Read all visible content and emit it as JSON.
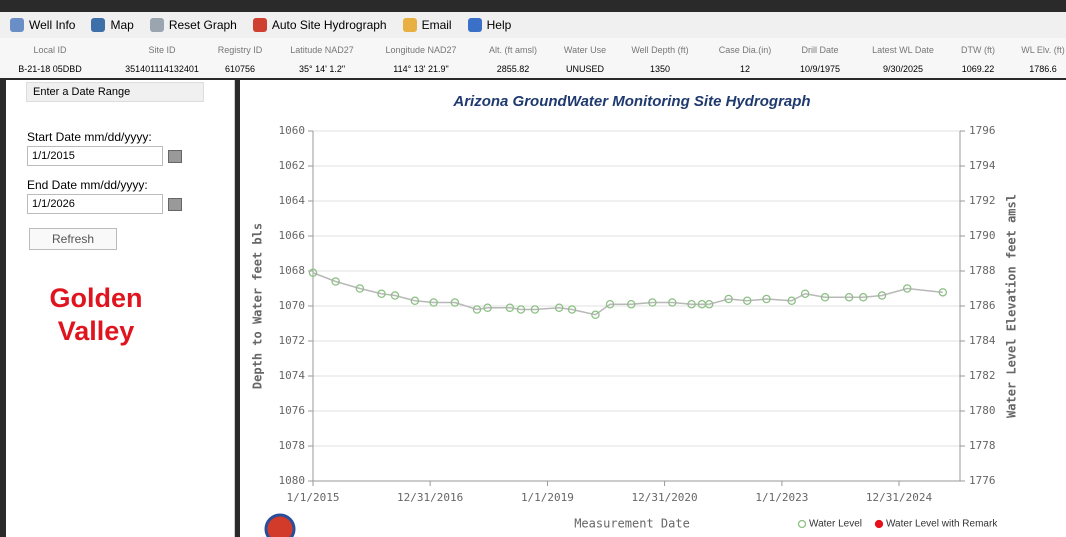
{
  "toolbar": [
    "Well Info",
    "Map",
    "Reset Graph",
    "Auto Site Hydrograph",
    "Email",
    "Help"
  ],
  "info": {
    "headers": [
      "Local ID",
      "Site ID",
      "Registry ID",
      "Latitude NAD27",
      "Longitude NAD27",
      "Alt. (ft amsl)",
      "Water Use",
      "Well Depth (ft)",
      "Case Dia.(in)",
      "Drill Date",
      "Latest WL Date",
      "DTW (ft)",
      "WL Elv. (ft)"
    ],
    "values": [
      "B-21-18 05DBD",
      "351401114132401",
      "610756",
      "35° 14' 1.2\"",
      "114° 13' 21.9\"",
      "2855.82",
      "UNUSED",
      "1350",
      "12",
      "10/9/1975",
      "9/30/2025",
      "1069.22",
      "1786.6"
    ]
  },
  "panel": {
    "header": "Enter a Date Range",
    "start_label": "Start Date mm/dd/yyyy:",
    "start_value": "1/1/2015",
    "end_label": "End Date mm/dd/yyyy:",
    "end_value": "1/1/2026",
    "button": "Refresh",
    "location": "Golden Valley"
  },
  "chart_data": {
    "type": "line",
    "title": "Arizona GroundWater Monitoring Site Hydrograph",
    "x_label": "Measurement Date",
    "y_label": "Depth to Water feet bls",
    "y2_label": "Water Level Elevation feet amsl",
    "x": [
      "2015-01-01",
      "2015-05-22",
      "2015-10-20",
      "2016-03-03",
      "2016-05-26",
      "2016-09-27",
      "2017-01-22",
      "2017-06-03",
      "2017-10-19",
      "2017-12-24",
      "2018-05-12",
      "2018-07-20",
      "2018-10-15",
      "2019-03-15",
      "2019-06-03",
      "2019-10-27",
      "2020-01-26",
      "2020-06-06",
      "2020-10-16",
      "2021-02-17",
      "2021-06-17",
      "2021-08-21",
      "2021-10-05",
      "2022-02-03",
      "2022-05-30",
      "2022-09-27",
      "2023-03-03",
      "2023-05-26",
      "2023-09-27",
      "2024-02-24",
      "2024-05-22",
      "2024-09-16",
      "2025-02-20",
      "2025-09-30"
    ],
    "series": [
      {
        "name": "Water Level",
        "color": "#8cc084",
        "values": [
          1068.1,
          1068.6,
          1069.0,
          1069.3,
          1069.4,
          1069.7,
          1069.8,
          1069.8,
          1070.2,
          1070.1,
          1070.1,
          1070.2,
          1070.2,
          1070.1,
          1070.2,
          1070.5,
          1069.9,
          1069.9,
          1069.8,
          1069.8,
          1069.9,
          1069.9,
          1069.9,
          1069.6,
          1069.7,
          1069.6,
          1069.7,
          1069.3,
          1069.5,
          1069.5,
          1069.5,
          1069.4,
          1069.0,
          1069.22
        ]
      },
      {
        "name": "Water Level with Remark",
        "color": "#e8101a",
        "values": [
          null,
          null,
          null,
          null,
          null,
          null,
          null,
          null,
          null,
          null,
          null,
          null,
          null,
          null,
          null,
          null,
          null,
          null,
          null,
          null,
          null,
          null,
          null,
          null,
          null,
          null,
          null,
          null,
          null,
          null,
          null,
          null,
          null,
          null
        ]
      }
    ],
    "xlim": [
      "2015-01-01",
      "2026-01-15"
    ],
    "xticks": [
      {
        "value": "2015-01-01",
        "label": "1/1/2015"
      },
      {
        "value": "2016-12-31",
        "label": "12/31/2016"
      },
      {
        "value": "2019-01-01",
        "label": "1/1/2019"
      },
      {
        "value": "2020-12-31",
        "label": "12/31/2020"
      },
      {
        "value": "2023-01-01",
        "label": "1/1/2023"
      },
      {
        "value": "2024-12-31",
        "label": "12/31/2024"
      }
    ],
    "ylim": [
      1080,
      1060
    ],
    "yticks": [
      1060,
      1062,
      1064,
      1066,
      1068,
      1070,
      1072,
      1074,
      1076,
      1078,
      1080
    ],
    "y2lim": [
      1776,
      1796
    ],
    "y2ticks": [
      1796,
      1794,
      1792,
      1790,
      1788,
      1786,
      1784,
      1782,
      1780,
      1778,
      1776
    ],
    "grid": true
  }
}
